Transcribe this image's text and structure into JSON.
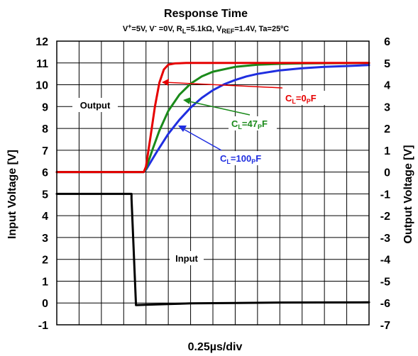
{
  "chart_data": {
    "type": "line",
    "title": "Response Time",
    "subtitle": {
      "vplus_label": "V",
      "vplus_sup": "+",
      "vplus_val": "=5V, ",
      "vminus_label": "V",
      "vminus_sup": "-",
      "vminus_val": " =0V, ",
      "rl_label": "R",
      "rl_sub": "L",
      "rl_val": "=5.1kΩ, ",
      "vref_label": "V",
      "vref_sub": "REF",
      "vref_val": "=1.4V, ",
      "ta": "Ta=25ºC"
    },
    "xlabel": "0.25µs/div",
    "ylabel_left": "Input Voltage [V]",
    "ylabel_right": "Output Voltage [V]",
    "x_range": [
      0,
      14
    ],
    "y_left": {
      "range": [
        -1,
        12
      ],
      "ticks": [
        "-1",
        "0",
        "1",
        "2",
        "3",
        "4",
        "5",
        "6",
        "7",
        "8",
        "9",
        "10",
        "11",
        "12"
      ]
    },
    "y_right": {
      "range": [
        -7,
        6
      ],
      "ticks": [
        "-7",
        "-6",
        "-5",
        "-4",
        "-3",
        "-2",
        "-1",
        "0",
        "1",
        "2",
        "3",
        "4",
        "5",
        "6"
      ]
    },
    "grid": true,
    "series": [
      {
        "name": "Input",
        "color": "#000000",
        "axis": "left",
        "x": [
          0,
          3.35,
          3.35,
          3.55,
          3.55,
          4.0,
          5.0,
          6.0,
          8.0,
          10.0,
          14.0
        ],
        "y": [
          5,
          5,
          4.8,
          -0.08,
          -0.1,
          -0.08,
          -0.05,
          -0.02,
          0.0,
          0.02,
          0.03
        ]
      },
      {
        "name": "C_L=0pF",
        "label_main": "C",
        "label_sub": "L",
        "label_mid": "=0",
        "label_sub2": "P",
        "label_end": "F",
        "color": "#e60000",
        "axis": "right",
        "x": [
          0,
          3.9,
          4.0,
          4.2,
          4.4,
          4.6,
          4.8,
          5.0,
          5.3,
          5.8,
          14.0
        ],
        "y": [
          0,
          0,
          0.25,
          1.6,
          3.0,
          4.1,
          4.7,
          4.92,
          4.98,
          5.0,
          5.0
        ]
      },
      {
        "name": "C_L=47pF",
        "label_main": "C",
        "label_sub": "L",
        "label_mid": "=47",
        "label_sub2": "P",
        "label_end": "F",
        "color": "#1a8a1a",
        "axis": "right",
        "x": [
          0,
          3.9,
          4.0,
          4.3,
          4.6,
          5.0,
          5.5,
          6.0,
          6.5,
          7.0,
          8.0,
          9.0,
          10.0,
          11.0,
          12.0,
          14.0
        ],
        "y": [
          0,
          0,
          0.15,
          1.05,
          1.9,
          2.8,
          3.55,
          4.05,
          4.38,
          4.6,
          4.82,
          4.92,
          4.96,
          4.98,
          4.99,
          5.0
        ]
      },
      {
        "name": "C_L=100pF",
        "label_main": "C",
        "label_sub": "L",
        "label_mid": "=100",
        "label_sub2": "P",
        "label_end": "F",
        "color": "#1f2ee0",
        "axis": "right",
        "x": [
          0,
          3.9,
          4.0,
          4.5,
          5.0,
          5.5,
          6.0,
          6.5,
          7.0,
          7.5,
          8.0,
          8.5,
          9.0,
          10.0,
          11.0,
          12.0,
          13.0,
          14.0
        ],
        "y": [
          0,
          0,
          0.1,
          0.95,
          1.75,
          2.4,
          2.95,
          3.4,
          3.75,
          4.02,
          4.22,
          4.38,
          4.5,
          4.66,
          4.76,
          4.82,
          4.86,
          4.9
        ]
      }
    ],
    "annotations": {
      "output_label": "Output",
      "input_label": "Input"
    }
  }
}
